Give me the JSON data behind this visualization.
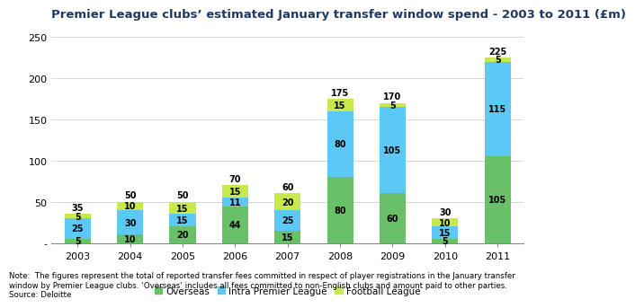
{
  "title": "Premier League clubs’ estimated January transfer window spend - 2003 to 2011 (£m)",
  "categories": [
    "2003",
    "2004",
    "2005",
    "2006",
    "2007",
    "2008",
    "2009",
    "2010",
    "2011"
  ],
  "overseas": [
    5,
    10,
    20,
    44,
    15,
    80,
    60,
    5,
    105
  ],
  "intra_pl": [
    25,
    30,
    15,
    11,
    25,
    80,
    105,
    15,
    115
  ],
  "football_lg": [
    5,
    10,
    15,
    15,
    20,
    15,
    5,
    10,
    5
  ],
  "totals": [
    35,
    50,
    50,
    70,
    60,
    175,
    170,
    30,
    225
  ],
  "color_overseas": "#6abf69",
  "color_intra_pl": "#5bc8f5",
  "color_football_lg": "#c8e84e",
  "ylim": [
    0,
    265
  ],
  "yticks": [
    0,
    50,
    100,
    150,
    200,
    250
  ],
  "ylabel_zero": "-",
  "legend_labels": [
    "Overseas",
    "Intra Premier League",
    "Football League"
  ],
  "note": "Note:  The figures represent the total of reported transfer fees committed in respect of player registrations in the January transfer\nwindow by Premier League clubs. ‘Overseas’ includes all fees committed to non-English clubs and amount paid to other parties.\nSource: Deloitte",
  "title_color": "#1f3864",
  "background_color": "#ffffff",
  "bar_width": 0.5,
  "title_fontsize": 9.5,
  "ann_fontsize": 7.0,
  "tick_fontsize": 8.0,
  "legend_fontsize": 7.5,
  "note_fontsize": 6.2
}
